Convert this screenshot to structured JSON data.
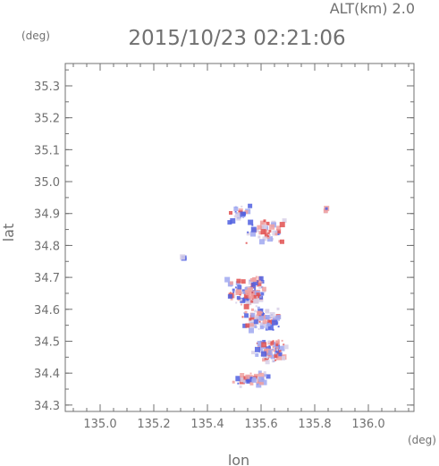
{
  "header": {
    "altitude": "ALT(km) 2.0",
    "timestamp": "2015/10/23 02:21:06"
  },
  "chart_data": {
    "type": "scatter",
    "title": "2015/10/23 02:21:06",
    "subtitle": "ALT(km) 2.0",
    "xlabel": "lon",
    "ylabel": "lat",
    "x_unit": "(deg)",
    "y_unit": "(deg)",
    "xlim": [
      134.87,
      136.17
    ],
    "ylim": [
      34.28,
      35.37
    ],
    "grid": false,
    "x_ticks": [
      "135.0",
      "135.2",
      "135.4",
      "135.6",
      "135.8",
      "136.0"
    ],
    "y_ticks": [
      "34.3",
      "34.4",
      "34.5",
      "34.6",
      "34.7",
      "34.8",
      "34.9",
      "35.0",
      "35.1",
      "35.2",
      "35.3"
    ],
    "colors": {
      "positive": "#e05050",
      "negative": "#5060e0",
      "near_zero": "#d8d0e8",
      "axis": "#707070"
    },
    "clusters": [
      {
        "lon": 135.52,
        "lat": 34.9,
        "spread_lon": 0.05,
        "spread_lat": 0.03,
        "n": 20
      },
      {
        "lon": 135.62,
        "lat": 34.84,
        "spread_lon": 0.09,
        "spread_lat": 0.04,
        "n": 45
      },
      {
        "lon": 135.55,
        "lat": 34.66,
        "spread_lon": 0.08,
        "spread_lat": 0.05,
        "n": 110
      },
      {
        "lon": 135.6,
        "lat": 34.57,
        "spread_lon": 0.08,
        "spread_lat": 0.04,
        "n": 90
      },
      {
        "lon": 135.63,
        "lat": 34.47,
        "spread_lon": 0.07,
        "spread_lat": 0.04,
        "n": 80
      },
      {
        "lon": 135.57,
        "lat": 34.38,
        "spread_lon": 0.08,
        "spread_lat": 0.025,
        "n": 50
      },
      {
        "lon": 135.84,
        "lat": 34.91,
        "spread_lon": 0.01,
        "spread_lat": 0.01,
        "n": 4
      },
      {
        "lon": 135.31,
        "lat": 34.76,
        "spread_lon": 0.01,
        "spread_lat": 0.01,
        "n": 3
      }
    ]
  }
}
